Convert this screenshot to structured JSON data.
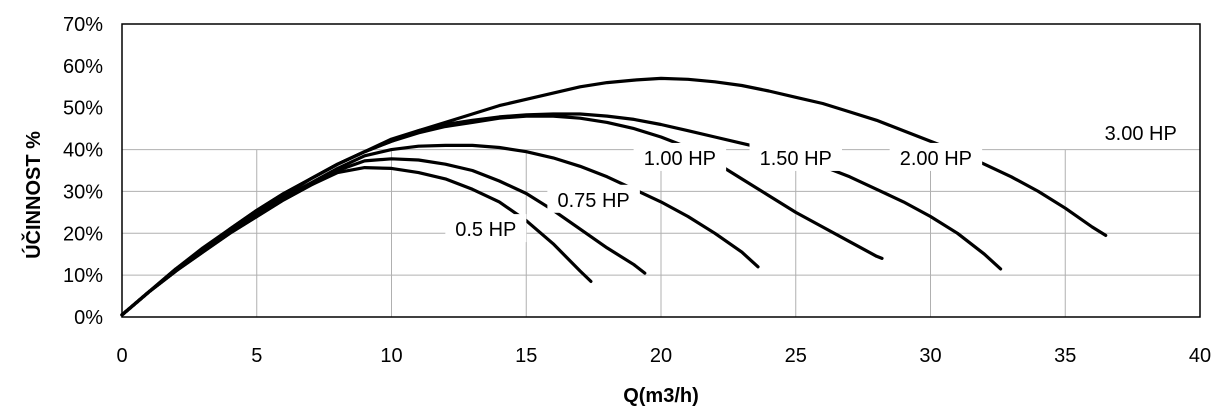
{
  "chart_data": {
    "type": "line",
    "title": "",
    "xlabel": "Q(m3/h)",
    "ylabel": "ÚČINNOST  %",
    "xlim": [
      0,
      40
    ],
    "ylim": [
      0,
      70
    ],
    "x_ticks": [
      "0",
      "5",
      "10",
      "15",
      "20",
      "25",
      "30",
      "35",
      "40"
    ],
    "y_ticks": [
      "0%",
      "10%",
      "20%",
      "30%",
      "40%",
      "50%",
      "60%",
      "70%"
    ],
    "grid": "partial",
    "legend": "none",
    "line_color": "#000000",
    "series": [
      {
        "name": "0.5 HP",
        "label_at": [
          13.5,
          21
        ],
        "points": [
          [
            0,
            0.5
          ],
          [
            1,
            6
          ],
          [
            2,
            11
          ],
          [
            3,
            15.5
          ],
          [
            4,
            20
          ],
          [
            5,
            24
          ],
          [
            6,
            28
          ],
          [
            7,
            31.5
          ],
          [
            8,
            34.5
          ],
          [
            9,
            35.7
          ],
          [
            10,
            35.5
          ],
          [
            11,
            34.5
          ],
          [
            12,
            33
          ],
          [
            13,
            30.5
          ],
          [
            14,
            27.5
          ],
          [
            15,
            23
          ],
          [
            16,
            17.5
          ],
          [
            17,
            11
          ],
          [
            17.4,
            8.5
          ]
        ]
      },
      {
        "name": "0.75 HP",
        "label_at": [
          17.5,
          28
        ],
        "points": [
          [
            0,
            0.5
          ],
          [
            1,
            6
          ],
          [
            2,
            11
          ],
          [
            3,
            15.5
          ],
          [
            4,
            20
          ],
          [
            5,
            24
          ],
          [
            6,
            28
          ],
          [
            7,
            31.5
          ],
          [
            8,
            35
          ],
          [
            9,
            37.3
          ],
          [
            10,
            37.8
          ],
          [
            11,
            37.5
          ],
          [
            12,
            36.5
          ],
          [
            13,
            35
          ],
          [
            14,
            32.5
          ],
          [
            15,
            29.5
          ],
          [
            16,
            25.5
          ],
          [
            17,
            21
          ],
          [
            18,
            16.5
          ],
          [
            19,
            12.5
          ],
          [
            19.4,
            10.5
          ]
        ]
      },
      {
        "name": "1.00 HP",
        "label_at": [
          20.7,
          38
        ],
        "points": [
          [
            0,
            0.5
          ],
          [
            1,
            6
          ],
          [
            2,
            11
          ],
          [
            3,
            16
          ],
          [
            4,
            20.5
          ],
          [
            5,
            24.5
          ],
          [
            6,
            28.5
          ],
          [
            7,
            32
          ],
          [
            8,
            35.5
          ],
          [
            9,
            38.5
          ],
          [
            10,
            40
          ],
          [
            11,
            40.8
          ],
          [
            12,
            41
          ],
          [
            13,
            41
          ],
          [
            14,
            40.5
          ],
          [
            15,
            39.5
          ],
          [
            16,
            38
          ],
          [
            17,
            36
          ],
          [
            18,
            33.5
          ],
          [
            19,
            30.5
          ],
          [
            20,
            27.5
          ],
          [
            21,
            24
          ],
          [
            22,
            20
          ],
          [
            23,
            15.5
          ],
          [
            23.6,
            12
          ]
        ]
      },
      {
        "name": "1.50 HP",
        "label_at": [
          25,
          38
        ],
        "points": [
          [
            0,
            0.5
          ],
          [
            1,
            6
          ],
          [
            2,
            11
          ],
          [
            3,
            16
          ],
          [
            4,
            20.5
          ],
          [
            5,
            25
          ],
          [
            6,
            29
          ],
          [
            7,
            33
          ],
          [
            8,
            36.5
          ],
          [
            9,
            39.5
          ],
          [
            10,
            42
          ],
          [
            11,
            44
          ],
          [
            12,
            45.5
          ],
          [
            13,
            46.5
          ],
          [
            14,
            47.5
          ],
          [
            15,
            48
          ],
          [
            16,
            48
          ],
          [
            17,
            47.5
          ],
          [
            18,
            46.5
          ],
          [
            19,
            45
          ],
          [
            20,
            43
          ],
          [
            21,
            40.5
          ],
          [
            22,
            37
          ],
          [
            23,
            33
          ],
          [
            24,
            29
          ],
          [
            25,
            25
          ],
          [
            26,
            21.5
          ],
          [
            27,
            18
          ],
          [
            28,
            14.5
          ],
          [
            28.2,
            14
          ]
        ]
      },
      {
        "name": "2.00 HP",
        "label_at": [
          30.2,
          38
        ],
        "points": [
          [
            0,
            0.5
          ],
          [
            1,
            6
          ],
          [
            2,
            11.5
          ],
          [
            3,
            16
          ],
          [
            4,
            21
          ],
          [
            5,
            25.5
          ],
          [
            6,
            29.5
          ],
          [
            7,
            33
          ],
          [
            8,
            36.5
          ],
          [
            9,
            39.5
          ],
          [
            10,
            42.5
          ],
          [
            11,
            44.5
          ],
          [
            12,
            46
          ],
          [
            13,
            47
          ],
          [
            14,
            47.8
          ],
          [
            15,
            48.3
          ],
          [
            16,
            48.5
          ],
          [
            17,
            48.5
          ],
          [
            18,
            48
          ],
          [
            19,
            47.2
          ],
          [
            20,
            46
          ],
          [
            21,
            44.5
          ],
          [
            22,
            43
          ],
          [
            23,
            41.5
          ],
          [
            24,
            40
          ],
          [
            25,
            38
          ],
          [
            26,
            36
          ],
          [
            27,
            33.5
          ],
          [
            28,
            30.5
          ],
          [
            29,
            27.5
          ],
          [
            30,
            24
          ],
          [
            31,
            20
          ],
          [
            32,
            15
          ],
          [
            32.6,
            11.5
          ]
        ]
      },
      {
        "name": "3.00 HP",
        "label_at": [
          37.8,
          44
        ],
        "points": [
          [
            0,
            0.5
          ],
          [
            1,
            6
          ],
          [
            2,
            11.5
          ],
          [
            3,
            16.5
          ],
          [
            4,
            21
          ],
          [
            5,
            25.5
          ],
          [
            6,
            29.5
          ],
          [
            7,
            33
          ],
          [
            8,
            36.5
          ],
          [
            9,
            39.5
          ],
          [
            10,
            42
          ],
          [
            11,
            44.5
          ],
          [
            12,
            46.5
          ],
          [
            13,
            48.5
          ],
          [
            14,
            50.5
          ],
          [
            15,
            52
          ],
          [
            16,
            53.5
          ],
          [
            17,
            55
          ],
          [
            18,
            56
          ],
          [
            19,
            56.6
          ],
          [
            20,
            57
          ],
          [
            21,
            56.8
          ],
          [
            22,
            56.2
          ],
          [
            23,
            55.3
          ],
          [
            24,
            54
          ],
          [
            25,
            52.5
          ],
          [
            26,
            51
          ],
          [
            27,
            49
          ],
          [
            28,
            47
          ],
          [
            29,
            44.5
          ],
          [
            30,
            42
          ],
          [
            31,
            39.5
          ],
          [
            32,
            36.5
          ],
          [
            33,
            33.5
          ],
          [
            34,
            30
          ],
          [
            35,
            26
          ],
          [
            36,
            21.5
          ],
          [
            36.5,
            19.5
          ]
        ]
      }
    ]
  }
}
